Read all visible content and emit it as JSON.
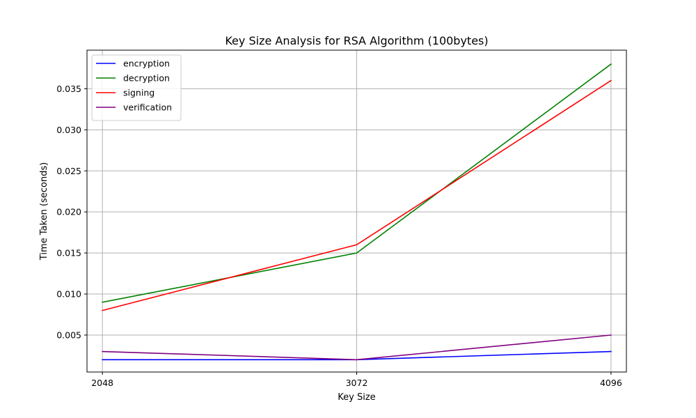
{
  "chart_data": {
    "type": "line",
    "title": "Key Size Analysis for RSA Algorithm (100bytes)",
    "xlabel": "Key Size",
    "ylabel": "Time Taken (seconds)",
    "x": [
      2048,
      3072,
      4096
    ],
    "x_tick_labels": [
      "2048",
      "3072",
      "4096"
    ],
    "xlim": [
      1986,
      4158
    ],
    "ylim": [
      0.0005,
      0.0397
    ],
    "y_ticks": [
      0.005,
      0.01,
      0.015,
      0.02,
      0.025,
      0.03,
      0.035
    ],
    "y_tick_labels": [
      "0.005",
      "0.010",
      "0.015",
      "0.020",
      "0.025",
      "0.030",
      "0.035"
    ],
    "grid": true,
    "legend_position": "top-left",
    "series": [
      {
        "name": "encryption",
        "color": "#0000ff",
        "values": [
          0.002,
          0.002,
          0.003
        ]
      },
      {
        "name": "decryption",
        "color": "#008000",
        "values": [
          0.009,
          0.015,
          0.038
        ]
      },
      {
        "name": "signing",
        "color": "#ff0000",
        "values": [
          0.008,
          0.016,
          0.036
        ]
      },
      {
        "name": "verification",
        "color": "#800080",
        "values": [
          0.003,
          0.002,
          0.005
        ]
      }
    ]
  }
}
